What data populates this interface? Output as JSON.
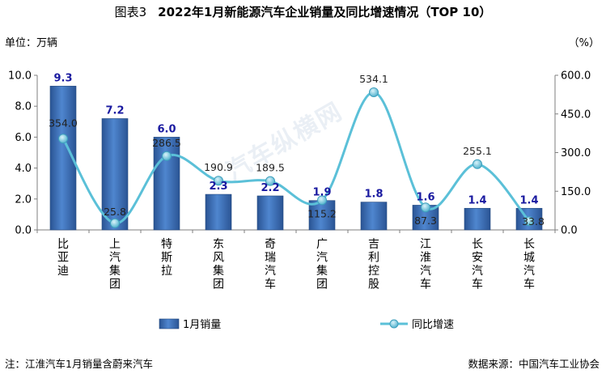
{
  "header": {
    "figure_label": "图表3",
    "title": "2022年1月新能源汽车企业销量及同比增速情况（TOP 10）"
  },
  "units": {
    "left": "单位：万辆",
    "right": "（%）"
  },
  "footer": {
    "note": "注：江淮汽车1月销量含蔚来汽车",
    "source": "数据来源：中国汽车工业协会"
  },
  "watermark": "汽车纵横网",
  "colors": {
    "bar": "#3a6eb8",
    "line": "#5bc0d8",
    "bar_label": "#1a1aa0",
    "axis": "#7f7f7f"
  },
  "chart_data": {
    "type": "bar",
    "categories": [
      "比亚迪",
      "上汽集团",
      "特斯拉",
      "东风集团",
      "奇瑞汽车",
      "广汽集团",
      "吉利控股",
      "江淮汽车",
      "长安汽车",
      "长城汽车"
    ],
    "series": [
      {
        "name": "1月销量",
        "type": "bar",
        "axis": "left",
        "values": [
          9.3,
          7.2,
          6.0,
          2.3,
          2.2,
          1.9,
          1.8,
          1.6,
          1.4,
          1.4
        ],
        "labels": [
          "9.3",
          "7.2",
          "6.0",
          "2.3",
          "2.2",
          "1.9",
          "1.8",
          "1.6",
          "1.4",
          "1.4"
        ]
      },
      {
        "name": "同比增速",
        "type": "line",
        "axis": "right",
        "values": [
          354.0,
          25.8,
          286.5,
          190.9,
          189.5,
          115.2,
          534.1,
          87.3,
          255.1,
          33.8
        ],
        "labels": [
          "354.0",
          "25.8",
          "286.5",
          "190.9",
          "189.5",
          "115.2",
          "534.1",
          "87.3",
          "255.1",
          "33.8"
        ]
      }
    ],
    "y_left": {
      "range": [
        0,
        10
      ],
      "ticks": [
        "0.0",
        "2.0",
        "4.0",
        "6.0",
        "8.0",
        "10.0"
      ]
    },
    "y_right": {
      "range": [
        0,
        600
      ],
      "ticks": [
        "0.0",
        "150.0",
        "300.0",
        "450.0",
        "600.0"
      ]
    },
    "grid": false,
    "legend_position": "bottom"
  }
}
